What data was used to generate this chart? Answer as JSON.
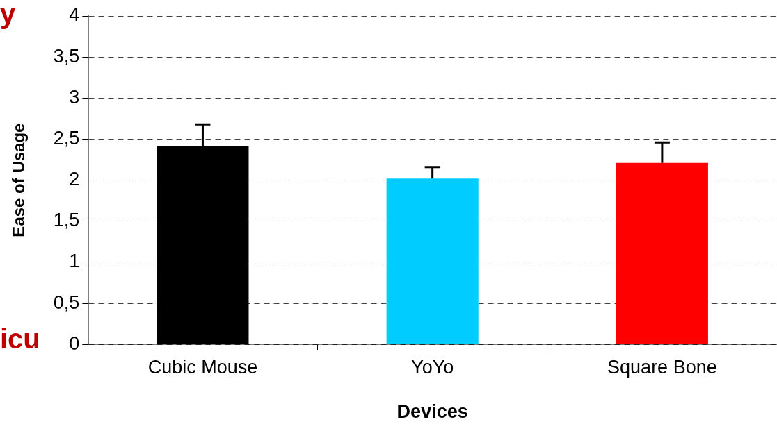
{
  "chart_data": {
    "type": "bar",
    "xlabel": "Devices",
    "ylabel": "Ease of Usage",
    "categories": [
      "Cubic Mouse",
      "YoYo",
      "Square Bone"
    ],
    "values": [
      2.41,
      2.02,
      2.21
    ],
    "colors": [
      "#000000",
      "#00ccff",
      "#ff0000"
    ],
    "errors": [
      [
        2.41,
        2.68
      ],
      [
        2.02,
        2.16
      ],
      [
        2.21,
        2.46
      ]
    ],
    "ylim": [
      0,
      4
    ],
    "yticks": [
      0,
      {
        "value": 0.5,
        "label": "0,5"
      },
      1,
      {
        "value": 1.5,
        "label": "1,5"
      },
      2,
      {
        "value": 2.5,
        "label": "2,5"
      },
      3,
      {
        "value": 3.5,
        "label": "3,5"
      },
      4
    ],
    "grid": "y",
    "legend": false,
    "annotations": [
      "y",
      "icu"
    ]
  }
}
